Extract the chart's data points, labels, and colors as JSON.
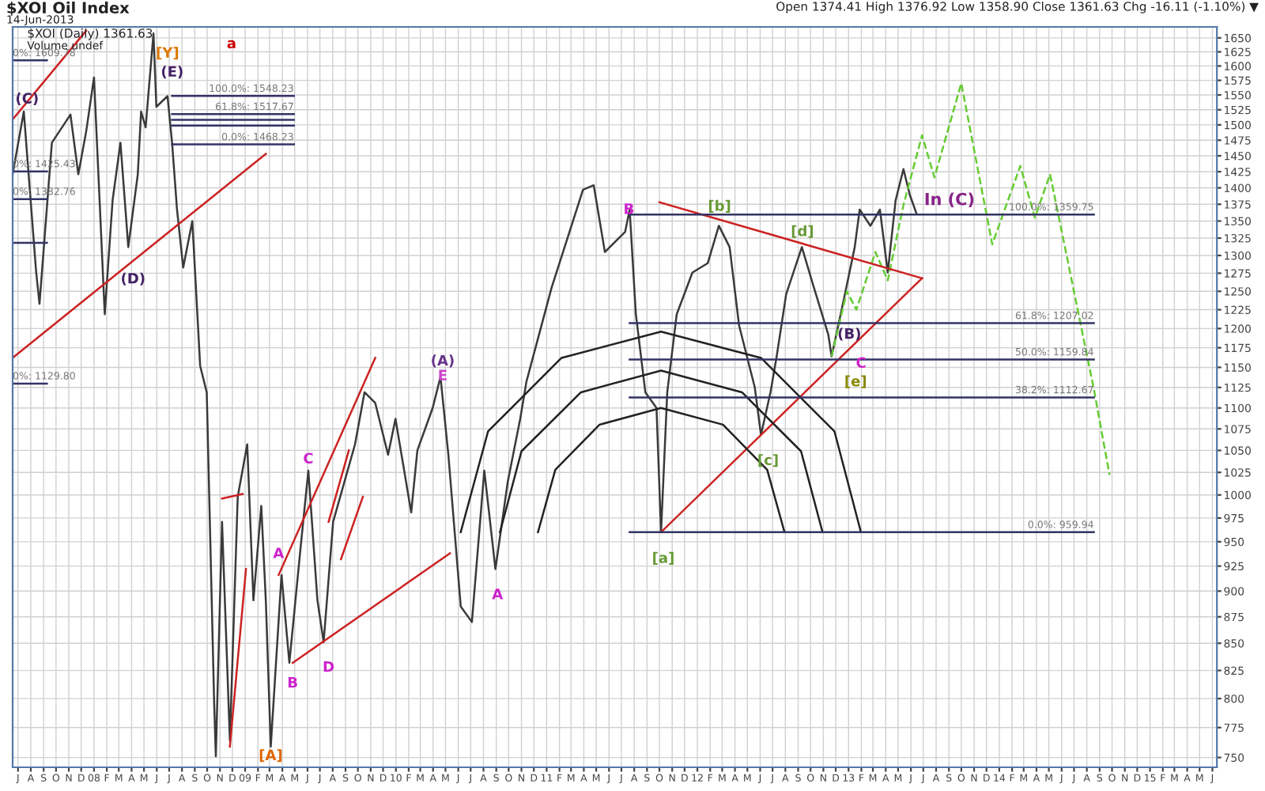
{
  "chart_data": {
    "type": "line",
    "title": "$XOI Oil Index",
    "subtitle": "14-Jun-2013",
    "log": "y",
    "xlim": [
      "2007-06-18",
      "2015-06-12"
    ],
    "ylim": [
      742,
      1670
    ],
    "yticks": [
      750,
      775,
      800,
      825,
      850,
      875,
      900,
      925,
      950,
      975,
      1000,
      1025,
      1050,
      1075,
      1100,
      1125,
      1150,
      1175,
      1200,
      1225,
      1250,
      1275,
      1300,
      1325,
      1350,
      1375,
      1400,
      1425,
      1450,
      1475,
      1500,
      1525,
      1550,
      1575,
      1600,
      1625,
      1650
    ],
    "xticks": [
      {
        "value": "2007-07-01",
        "label": "J"
      },
      {
        "value": "2007-08-01",
        "label": "A"
      },
      {
        "value": "2007-09-01",
        "label": "S"
      },
      {
        "value": "2007-10-01",
        "label": "O"
      },
      {
        "value": "2007-11-01",
        "label": "N"
      },
      {
        "value": "2007-12-01",
        "label": "D"
      },
      {
        "value": "2008-01-01",
        "label": "08"
      },
      {
        "value": "2008-02-01",
        "label": "F"
      },
      {
        "value": "2008-03-01",
        "label": "M"
      },
      {
        "value": "2008-04-01",
        "label": "A"
      },
      {
        "value": "2008-05-01",
        "label": "M"
      },
      {
        "value": "2008-06-01",
        "label": "J"
      },
      {
        "value": "2008-07-01",
        "label": "J"
      },
      {
        "value": "2008-08-01",
        "label": "A"
      },
      {
        "value": "2008-09-01",
        "label": "S"
      },
      {
        "value": "2008-10-01",
        "label": "O"
      },
      {
        "value": "2008-11-01",
        "label": "N"
      },
      {
        "value": "2008-12-01",
        "label": "D"
      },
      {
        "value": "2009-01-01",
        "label": "09"
      },
      {
        "value": "2009-02-01",
        "label": "F"
      },
      {
        "value": "2009-03-01",
        "label": "M"
      },
      {
        "value": "2009-04-01",
        "label": "A"
      },
      {
        "value": "2009-05-01",
        "label": "M"
      },
      {
        "value": "2009-06-01",
        "label": "J"
      },
      {
        "value": "2009-07-01",
        "label": "J"
      },
      {
        "value": "2009-08-01",
        "label": "A"
      },
      {
        "value": "2009-09-01",
        "label": "S"
      },
      {
        "value": "2009-10-01",
        "label": "O"
      },
      {
        "value": "2009-11-01",
        "label": "N"
      },
      {
        "value": "2009-12-01",
        "label": "D"
      },
      {
        "value": "2010-01-01",
        "label": "10"
      },
      {
        "value": "2010-02-01",
        "label": "F"
      },
      {
        "value": "2010-03-01",
        "label": "M"
      },
      {
        "value": "2010-04-01",
        "label": "A"
      },
      {
        "value": "2010-05-01",
        "label": "M"
      },
      {
        "value": "2010-06-01",
        "label": "J"
      },
      {
        "value": "2010-07-01",
        "label": "J"
      },
      {
        "value": "2010-08-01",
        "label": "A"
      },
      {
        "value": "2010-09-01",
        "label": "S"
      },
      {
        "value": "2010-10-01",
        "label": "O"
      },
      {
        "value": "2010-11-01",
        "label": "N"
      },
      {
        "value": "2010-12-01",
        "label": "D"
      },
      {
        "value": "2011-01-01",
        "label": "11"
      },
      {
        "value": "2011-02-01",
        "label": "F"
      },
      {
        "value": "2011-03-01",
        "label": "M"
      },
      {
        "value": "2011-04-01",
        "label": "A"
      },
      {
        "value": "2011-05-01",
        "label": "M"
      },
      {
        "value": "2011-06-01",
        "label": "J"
      },
      {
        "value": "2011-07-01",
        "label": "J"
      },
      {
        "value": "2011-08-01",
        "label": "A"
      },
      {
        "value": "2011-09-01",
        "label": "S"
      },
      {
        "value": "2011-10-01",
        "label": "O"
      },
      {
        "value": "2011-11-01",
        "label": "N"
      },
      {
        "value": "2011-12-01",
        "label": "D"
      },
      {
        "value": "2012-01-01",
        "label": "12"
      },
      {
        "value": "2012-02-01",
        "label": "F"
      },
      {
        "value": "2012-03-01",
        "label": "M"
      },
      {
        "value": "2012-04-01",
        "label": "A"
      },
      {
        "value": "2012-05-01",
        "label": "M"
      },
      {
        "value": "2012-06-01",
        "label": "J"
      },
      {
        "value": "2012-07-01",
        "label": "J"
      },
      {
        "value": "2012-08-01",
        "label": "A"
      },
      {
        "value": "2012-09-01",
        "label": "S"
      },
      {
        "value": "2012-10-01",
        "label": "O"
      },
      {
        "value": "2012-11-01",
        "label": "N"
      },
      {
        "value": "2012-12-01",
        "label": "D"
      },
      {
        "value": "2013-01-01",
        "label": "13"
      },
      {
        "value": "2013-02-01",
        "label": "F"
      },
      {
        "value": "2013-03-01",
        "label": "M"
      },
      {
        "value": "2013-04-01",
        "label": "A"
      },
      {
        "value": "2013-05-01",
        "label": "M"
      },
      {
        "value": "2013-06-01",
        "label": "J"
      },
      {
        "value": "2013-07-01",
        "label": "J"
      },
      {
        "value": "2013-08-01",
        "label": "A"
      },
      {
        "value": "2013-09-01",
        "label": "S"
      },
      {
        "value": "2013-10-01",
        "label": "O"
      },
      {
        "value": "2013-11-01",
        "label": "N"
      },
      {
        "value": "2013-12-01",
        "label": "D"
      },
      {
        "value": "2014-01-01",
        "label": "14"
      },
      {
        "value": "2014-02-01",
        "label": "F"
      },
      {
        "value": "2014-03-01",
        "label": "M"
      },
      {
        "value": "2014-04-01",
        "label": "A"
      },
      {
        "value": "2014-05-01",
        "label": "M"
      },
      {
        "value": "2014-06-01",
        "label": "J"
      },
      {
        "value": "2014-07-01",
        "label": "J"
      },
      {
        "value": "2014-08-01",
        "label": "A"
      },
      {
        "value": "2014-09-01",
        "label": "S"
      },
      {
        "value": "2014-10-01",
        "label": "O"
      },
      {
        "value": "2014-11-01",
        "label": "N"
      },
      {
        "value": "2014-12-01",
        "label": "D"
      },
      {
        "value": "2015-01-01",
        "label": "15"
      },
      {
        "value": "2015-02-01",
        "label": "F"
      },
      {
        "value": "2015-03-01",
        "label": "M"
      },
      {
        "value": "2015-04-01",
        "label": "A"
      },
      {
        "value": "2015-05-01",
        "label": "M"
      },
      {
        "value": "2015-06-01",
        "label": "J"
      }
    ],
    "grid": true,
    "series": [
      {
        "color": "#3a3a3a",
        "line_style": "solid",
        "x": [
          "2007-06-18",
          "2007-07-15",
          "2007-08-14",
          "2007-08-22",
          "2007-09-21",
          "2007-11-05",
          "2007-11-24",
          "2007-12-13",
          "2008-01-01",
          "2008-01-27",
          "2008-02-15",
          "2008-03-05",
          "2008-03-24",
          "2008-04-16",
          "2008-04-24",
          "2008-05-05",
          "2008-05-24",
          "2008-05-31",
          "2008-06-27",
          "2008-07-08",
          "2008-07-20",
          "2008-08-04",
          "2008-08-26",
          "2008-09-14",
          "2008-09-30",
          "2008-10-03",
          "2008-10-18",
          "2008-10-22",
          "2008-11-06",
          "2008-11-25",
          "2008-12-14",
          "2009-01-06",
          "2009-01-21",
          "2009-02-09",
          "2009-02-20",
          "2009-03-04",
          "2009-03-30",
          "2009-04-18",
          "2009-05-15",
          "2009-06-03",
          "2009-06-25",
          "2009-07-10",
          "2009-08-02",
          "2009-09-24",
          "2009-10-17",
          "2009-11-12",
          "2009-12-13",
          "2009-12-31",
          "2010-02-07",
          "2010-02-22",
          "2010-03-31",
          "2010-04-19",
          "2010-05-08",
          "2010-06-07",
          "2010-07-04",
          "2010-08-03",
          "2010-08-30",
          "2010-09-29",
          "2010-10-29",
          "2010-11-13",
          "2011-01-13",
          "2011-03-30",
          "2011-04-25",
          "2011-05-22",
          "2011-07-10",
          "2011-07-21",
          "2011-08-05",
          "2011-08-28",
          "2011-09-24",
          "2011-10-05",
          "2011-10-20",
          "2011-11-12",
          "2011-12-20",
          "2012-01-26",
          "2012-02-22",
          "2012-03-19",
          "2012-04-11",
          "2012-05-19",
          "2012-06-03",
          "2012-06-26",
          "2012-07-11",
          "2012-08-03",
          "2012-09-10",
          "2012-10-06",
          "2012-11-13",
          "2012-11-21",
          "2012-12-21",
          "2013-01-16",
          "2013-01-28",
          "2013-02-23",
          "2013-03-18",
          "2013-04-06",
          "2013-04-25",
          "2013-05-14",
          "2013-05-29",
          "2013-06-14"
        ],
        "values": [
          1421,
          1522,
          1276,
          1233,
          1471,
          1517,
          1421,
          1489,
          1580,
          1219,
          1381,
          1471,
          1312,
          1421,
          1522,
          1496,
          1658,
          1530,
          1548,
          1471,
          1367,
          1283,
          1350,
          1152,
          1119,
          1057,
          795,
          751,
          971,
          764,
          998,
          1057,
          891,
          988,
          891,
          759,
          916,
          832,
          943,
          1027,
          891,
          851,
          971,
          1057,
          1119,
          1106,
          1045,
          1087,
          981,
          1050,
          1100,
          1138,
          1045,
          885,
          870,
          1027,
          922,
          1015,
          1087,
          1132,
          1255,
          1397,
          1404,
          1305,
          1334,
          1367,
          1219,
          1119,
          1100,
          960,
          1119,
          1219,
          1276,
          1289,
          1343,
          1312,
          1204,
          1125,
          1068,
          1119,
          1164,
          1246,
          1312,
          1261,
          1192,
          1164,
          1240,
          1312,
          1367,
          1343,
          1367,
          1276,
          1381,
          1429,
          1390,
          1362
        ]
      },
      {
        "color": "#66cc33",
        "line_style": "dashed",
        "x": [
          "2012-11-21",
          "2012-12-28",
          "2013-01-20",
          "2013-03-07",
          "2013-04-06",
          "2013-05-14",
          "2013-06-28",
          "2013-07-28",
          "2013-10-01",
          "2013-12-15",
          "2014-02-21",
          "2014-03-28",
          "2014-05-04",
          "2014-08-18",
          "2014-09-25"
        ],
        "values": [
          1164,
          1250,
          1225,
          1305,
          1265,
          1374,
          1483,
          1416,
          1570,
          1316,
          1434,
          1355,
          1421,
          1123,
          1022
        ]
      },
      {
        "color": "#cc2222",
        "line_style": "solid",
        "x": [
          "2007-06-18",
          "2007-12-13"
        ],
        "values": [
          1509,
          1663
        ]
      },
      {
        "color": "#cc2222",
        "line_style": "solid",
        "x": [
          "2007-06-18",
          "2009-02-20"
        ],
        "values": [
          1162,
          1453
        ]
      },
      {
        "color": "#cc2222",
        "line_style": "solid",
        "x": [
          "2008-11-06",
          "2008-12-26"
        ],
        "values": [
          996,
          1001
        ]
      },
      {
        "color": "#cc2222",
        "line_style": "solid",
        "x": [
          "2008-11-25",
          "2009-01-03"
        ],
        "values": [
          759,
          922
        ]
      },
      {
        "color": "#cc2222",
        "line_style": "solid",
        "x": [
          "2009-03-23",
          "2009-11-12"
        ],
        "values": [
          916,
          1162
        ]
      },
      {
        "color": "#cc2222",
        "line_style": "solid",
        "x": [
          "2009-07-22",
          "2009-09-09"
        ],
        "values": [
          971,
          1050
        ]
      },
      {
        "color": "#cc2222",
        "line_style": "solid",
        "x": [
          "2009-08-21",
          "2009-10-13"
        ],
        "values": [
          932,
          998
        ]
      },
      {
        "color": "#cc2222",
        "line_style": "solid",
        "x": [
          "2009-04-26",
          "2010-05-12"
        ],
        "values": [
          832,
          938
        ]
      },
      {
        "color": "#cc2222",
        "line_style": "solid",
        "x": [
          "2011-10-01",
          "2013-06-28"
        ],
        "values": [
          1378,
          1268
        ]
      },
      {
        "color": "#cc2222",
        "line_style": "solid",
        "x": [
          "2011-10-05",
          "2013-06-28"
        ],
        "values": [
          960,
          1268
        ]
      },
      {
        "color": "#222222",
        "line_style": "solid",
        "x": [
          "2010-12-11",
          "2011-01-22",
          "2011-05-09",
          "2011-10-05",
          "2012-03-03",
          "2012-06-18",
          "2012-07-30"
        ],
        "values": [
          960,
          1028,
          1080,
          1100,
          1080,
          1028,
          960
        ]
      },
      {
        "color": "#222222",
        "line_style": "solid",
        "x": [
          "2010-09-10",
          "2010-11-01",
          "2011-03-25",
          "2011-10-05",
          "2012-04-18",
          "2012-09-08",
          "2012-10-30"
        ],
        "values": [
          960,
          1049,
          1119,
          1146,
          1119,
          1049,
          960
        ]
      },
      {
        "color": "#222222",
        "line_style": "solid",
        "x": [
          "2010-06-07",
          "2010-08-12",
          "2011-02-06",
          "2011-10-05",
          "2012-06-03",
          "2012-11-28",
          "2013-01-31"
        ],
        "values": [
          960,
          1072,
          1162,
          1196,
          1162,
          1072,
          960
        ]
      },
      {
        "color": "#333366",
        "line_style": "solid",
        "x": [
          "2011-07-21",
          "2014-08-18"
        ],
        "values": [
          1359.75,
          1359.75
        ]
      },
      {
        "color": "#333366",
        "line_style": "solid",
        "x": [
          "2011-07-21",
          "2014-08-18"
        ],
        "values": [
          1207.02,
          1207.02
        ]
      },
      {
        "color": "#333366",
        "line_style": "solid",
        "x": [
          "2011-07-21",
          "2014-08-18"
        ],
        "values": [
          1159.84,
          1159.84
        ]
      },
      {
        "color": "#333366",
        "line_style": "solid",
        "x": [
          "2011-07-21",
          "2014-08-18"
        ],
        "values": [
          1112.67,
          1112.67
        ]
      },
      {
        "color": "#333366",
        "line_style": "solid",
        "x": [
          "2011-07-21",
          "2014-08-18"
        ],
        "values": [
          959.94,
          959.94
        ]
      },
      {
        "color": "#333366",
        "line_style": "solid",
        "x": [
          "2008-07-08",
          "2009-04-29"
        ],
        "values": [
          1548.23,
          1548.23
        ]
      },
      {
        "color": "#333366",
        "line_style": "solid",
        "x": [
          "2008-07-08",
          "2009-04-29"
        ],
        "values": [
          1517.67,
          1517.67
        ]
      },
      {
        "color": "#333366",
        "line_style": "solid",
        "x": [
          "2008-07-08",
          "2009-04-29"
        ],
        "values": [
          1508.23,
          1508.23
        ]
      },
      {
        "color": "#333366",
        "line_style": "solid",
        "x": [
          "2008-07-08",
          "2009-04-29"
        ],
        "values": [
          1498.79,
          1498.79
        ]
      },
      {
        "color": "#333366",
        "line_style": "solid",
        "x": [
          "2008-07-08",
          "2009-04-29"
        ],
        "values": [
          1468.23,
          1468.23
        ]
      },
      {
        "color": "#333366",
        "line_style": "solid",
        "x": [
          "2007-06-18",
          "2007-09-09"
        ],
        "values": [
          1609.78,
          1609.78
        ]
      },
      {
        "color": "#333366",
        "line_style": "solid",
        "x": [
          "2007-06-18",
          "2007-09-09"
        ],
        "values": [
          1425.43,
          1425.43
        ]
      },
      {
        "color": "#333366",
        "line_style": "solid",
        "x": [
          "2007-06-18",
          "2007-09-09"
        ],
        "values": [
          1382.76,
          1382.76
        ]
      },
      {
        "color": "#333366",
        "line_style": "solid",
        "x": [
          "2007-06-18",
          "2007-09-09"
        ],
        "values": [
          1318,
          1318
        ]
      },
      {
        "color": "#333366",
        "line_style": "solid",
        "x": [
          "2007-06-18",
          "2007-09-09"
        ],
        "values": [
          1129.8,
          1129.8
        ]
      }
    ],
    "annotations": [
      "$XOI (Daily) 1361.63",
      "Volume undef",
      "Open 1374.41 High 1376.92 Low 1358.90 Close 1361.63 Chg -16.11 (-1.10%) ▼",
      "(C)",
      "[Y]",
      "(E)",
      "a",
      "(D)",
      "(A)",
      "E",
      "A",
      "C",
      "B",
      "D",
      "[A]",
      "A",
      "B",
      "[b]",
      "[d]",
      "(B)",
      "C",
      "[e]",
      "[c]",
      "[a]",
      "In (C)",
      {
        "text": "100.0%: 1359.75",
        "x": "2014-08-18",
        "y": 1359.75
      },
      {
        "text": "61.8%: 1207.02",
        "x": "2014-08-18",
        "y": 1207.02
      },
      {
        "text": "50.0%: 1159.84",
        "x": "2014-08-18",
        "y": 1159.84
      },
      {
        "text": "38.2%: 1112.67",
        "x": "2014-08-18",
        "y": 1112.67
      },
      {
        "text": "0.0%: 959.94",
        "x": "2014-08-18",
        "y": 959.94
      },
      {
        "text": "100.0%: 1548.23",
        "x": "2009-04-29",
        "y": 1548.23
      },
      {
        "text": "61.8%: 1517.67",
        "x": "2009-04-29",
        "y": 1517.67
      },
      {
        "text": "0.0%: 1468.23",
        "x": "2009-04-29",
        "y": 1468.23
      },
      {
        "text": "0%: 1609.78",
        "x": "2007-06-18",
        "y": 1609.78
      },
      {
        "text": "0%: 1425.43",
        "x": "2007-06-18",
        "y": 1425.43
      },
      {
        "text": "0%: 1382.76",
        "x": "2007-06-18",
        "y": 1382.76
      },
      {
        "text": "0%: 1129.80",
        "x": "2007-06-18",
        "y": 1129.8
      }
    ]
  }
}
